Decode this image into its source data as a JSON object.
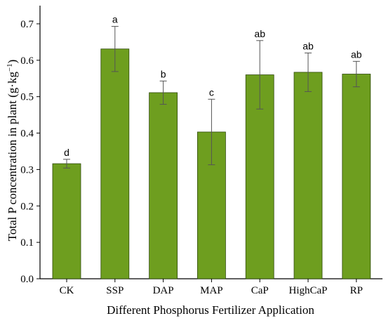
{
  "chart_data": {
    "type": "bar",
    "xlabel": "Different Phosphorus Fertilizer Application",
    "ylabel_main": "Total P concentration in plant (g·kg",
    "ylabel_sup": "−1",
    "ylabel_close": ")",
    "ylim": [
      0.0,
      0.75
    ],
    "yticks": [
      "0.0",
      "0.1",
      "0.2",
      "0.3",
      "0.4",
      "0.5",
      "0.6",
      "0.7"
    ],
    "grid": false,
    "bar_color": "#6e9e1f",
    "categories": [
      "CK",
      "SSP",
      "DAP",
      "MAP",
      "CaP",
      "HighCaP",
      "RP"
    ],
    "values": [
      0.316,
      0.631,
      0.511,
      0.403,
      0.56,
      0.567,
      0.562
    ],
    "errors": [
      0.012,
      0.062,
      0.032,
      0.09,
      0.094,
      0.053,
      0.035
    ],
    "letters": [
      "d",
      "a",
      "b",
      "c",
      "ab",
      "ab",
      "ab"
    ]
  }
}
